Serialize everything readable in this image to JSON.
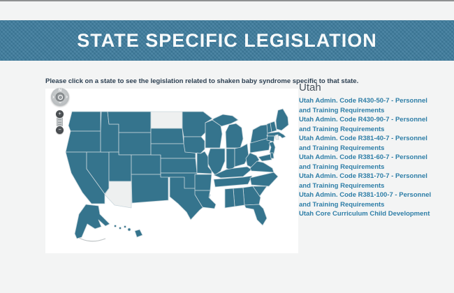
{
  "banner": {
    "title": "STATE SPECIFIC LEGISLATION"
  },
  "instruction": {
    "text": "Please click on a state to see the legislation related to shaken baby syndrome specific to that state."
  },
  "map": {
    "controls": {
      "compass_north": "N",
      "pan_left": "‹",
      "pan_right": "›",
      "pan_down": "›",
      "zoom_in": "+",
      "zoom_out": "−"
    },
    "inactive_states": [
      "north-dakota",
      "arizona",
      "rhode-island"
    ]
  },
  "sidebar": {
    "heading": "Utah",
    "links": [
      "Utah Admin. Code R430-50-7 - Personnel and Training Requirements",
      "Utah Admin. Code R430-90-7 - Personnel and Training Requirements",
      "Utah Admin. Code R381-40-7 - Personnel and Training Requirements",
      "Utah Admin. Code R381-60-7 - Personnel and Training Requirements",
      "Utah Admin. Code R381-70-7 - Personnel and Training Requirements",
      "Utah Admin. Code R381-100-7 - Personnel and Training Requirements",
      "Utah Core Curriculum Child Development"
    ]
  },
  "colors": {
    "page_bg": "#f3f4f4",
    "banner_bg": "#3e7c9d",
    "banner_text": "#f7fafb",
    "instruction_text": "#2b3e50",
    "state_fill": "#35748d",
    "state_inactive": "#eef0f0",
    "state_border": "#c9d6dc",
    "link": "#2e7ea7",
    "heading": "#47525c"
  }
}
